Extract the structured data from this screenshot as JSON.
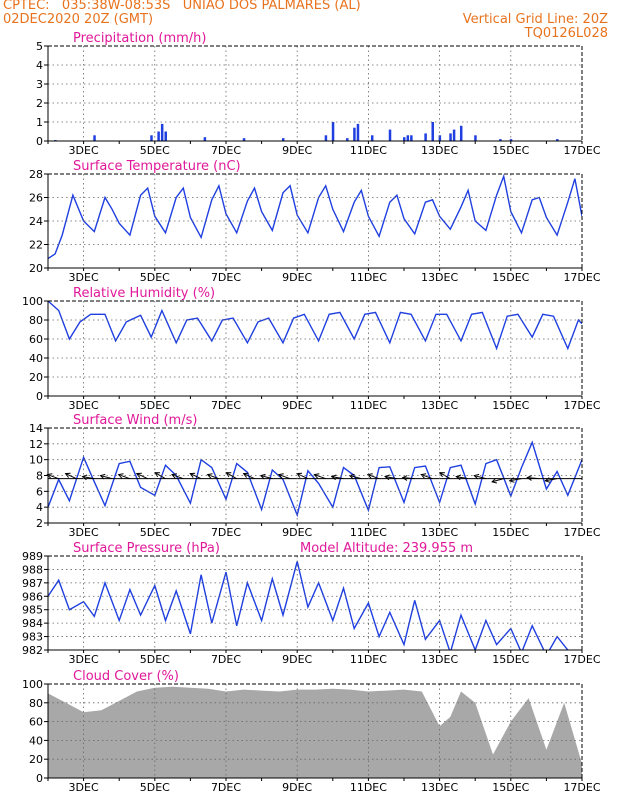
{
  "header": {
    "line1": "CPTEC:   035:38W-08:53S   UNIAO DOS PALMARES (AL)",
    "line2": "02DEC2020 20Z (GMT)",
    "grid_note": "Vertical Grid Line: 20Z",
    "model_code": "TQ0126L028"
  },
  "colors": {
    "header": "#e8731e",
    "title": "#e0189a",
    "line": "#1f3fe0",
    "cloud": "#a8a8a8",
    "arrow": "#000000"
  },
  "x_axis": {
    "ticks": [
      "3DEC",
      "5DEC",
      "7DEC",
      "9DEC",
      "11DEC",
      "13DEC",
      "15DEC",
      "17DEC"
    ]
  },
  "panels": [
    {
      "title": "Precipitation (mm/h)",
      "extra": ""
    },
    {
      "title": "Surface Temperature (nC)",
      "extra": ""
    },
    {
      "title": "Relative Humidity (%)",
      "extra": ""
    },
    {
      "title": "Surface Wind (m/s)",
      "extra": ""
    },
    {
      "title": "Surface Pressure (hPa)",
      "extra": "Model Altitude: 239.955 m"
    },
    {
      "title": "Cloud Cover (%)",
      "extra": ""
    }
  ],
  "chart_data": [
    {
      "type": "bar",
      "title": "Precipitation (mm/h)",
      "ylim": [
        0,
        5
      ],
      "yticks": [
        "0",
        "1",
        "2",
        "3",
        "4",
        "5"
      ],
      "x": [
        "2.20",
        "3.3",
        "4.9",
        "5.1",
        "5.2",
        "5.3",
        "6.4",
        "7.5",
        "8.6",
        "9.8",
        "10.0",
        "10.4",
        "10.6",
        "10.7",
        "11.1",
        "11.6",
        "12.0",
        "12.1",
        "12.2",
        "12.6",
        "12.8",
        "13.0",
        "13.3",
        "13.4",
        "13.6",
        "14.0",
        "14.7",
        "15.0",
        "16.3"
      ],
      "values": [
        0.05,
        0.3,
        0.3,
        0.5,
        0.9,
        0.5,
        0.2,
        0.15,
        0.15,
        0.3,
        1.0,
        0.15,
        0.7,
        0.9,
        0.3,
        0.6,
        0.2,
        0.3,
        0.3,
        0.4,
        1.0,
        0.3,
        0.4,
        0.6,
        0.8,
        0.3,
        0.1,
        0.1,
        0.1
      ]
    },
    {
      "type": "line",
      "title": "Surface Temperature (nC)",
      "ylim": [
        20,
        28
      ],
      "yticks": [
        "20",
        "22",
        "24",
        "26",
        "28"
      ],
      "x_days": [
        2.0,
        2.2,
        2.4,
        2.7,
        3.0,
        3.3,
        3.6,
        3.8,
        4.0,
        4.3,
        4.6,
        4.8,
        5.0,
        5.3,
        5.6,
        5.8,
        6.0,
        6.3,
        6.6,
        6.8,
        7.0,
        7.3,
        7.6,
        7.8,
        8.0,
        8.3,
        8.6,
        8.8,
        9.0,
        9.3,
        9.6,
        9.8,
        10.0,
        10.3,
        10.6,
        10.8,
        11.0,
        11.3,
        11.6,
        11.8,
        12.0,
        12.3,
        12.6,
        12.8,
        13.0,
        13.3,
        13.6,
        13.8,
        14.0,
        14.3,
        14.6,
        14.8,
        15.0,
        15.3,
        15.6,
        15.8,
        16.0,
        16.3,
        16.6,
        16.8,
        17.0
      ],
      "values": [
        20.8,
        21.2,
        22.8,
        26.2,
        24.0,
        23.1,
        26.0,
        25.0,
        23.8,
        22.8,
        26.2,
        26.8,
        24.4,
        23.0,
        26.0,
        26.8,
        24.3,
        22.6,
        25.8,
        27.0,
        24.6,
        23.0,
        25.7,
        26.8,
        24.8,
        23.2,
        26.4,
        27.0,
        24.5,
        23.0,
        26.0,
        27.0,
        25.0,
        23.1,
        25.6,
        26.6,
        24.4,
        22.7,
        25.6,
        26.2,
        24.2,
        22.9,
        25.6,
        25.8,
        24.4,
        23.3,
        25.2,
        26.6,
        24.0,
        23.2,
        26.2,
        27.8,
        24.8,
        23.0,
        25.8,
        26.0,
        24.3,
        22.8,
        25.6,
        27.6,
        24.4
      ]
    },
    {
      "type": "line",
      "title": "Relative Humidity (%)",
      "ylim": [
        0,
        100
      ],
      "yticks": [
        "0",
        "20",
        "40",
        "60",
        "80",
        "100"
      ],
      "x_days": [
        2.0,
        2.3,
        2.6,
        2.9,
        3.2,
        3.6,
        3.9,
        4.2,
        4.6,
        4.9,
        5.2,
        5.6,
        5.9,
        6.2,
        6.6,
        6.9,
        7.2,
        7.6,
        7.9,
        8.2,
        8.6,
        8.9,
        9.2,
        9.6,
        9.9,
        10.2,
        10.6,
        10.9,
        11.2,
        11.6,
        11.9,
        12.2,
        12.6,
        12.9,
        13.2,
        13.6,
        13.9,
        14.2,
        14.6,
        14.9,
        15.2,
        15.6,
        15.9,
        16.2,
        16.6,
        16.9,
        17.0
      ],
      "values": [
        100,
        90,
        60,
        78,
        86,
        86,
        58,
        78,
        85,
        62,
        90,
        56,
        80,
        82,
        58,
        80,
        82,
        56,
        78,
        82,
        56,
        82,
        86,
        58,
        86,
        88,
        60,
        86,
        88,
        56,
        88,
        86,
        58,
        86,
        86,
        58,
        86,
        88,
        50,
        84,
        86,
        62,
        86,
        84,
        50,
        80,
        76
      ]
    },
    {
      "type": "line",
      "title": "Surface Wind (m/s)",
      "ylim": [
        2,
        14
      ],
      "yticks": [
        "2",
        "4",
        "6",
        "8",
        "10",
        "12",
        "14"
      ],
      "x_days": [
        2.0,
        2.3,
        2.6,
        3.0,
        3.3,
        3.6,
        4.0,
        4.3,
        4.6,
        5.0,
        5.3,
        5.6,
        6.0,
        6.3,
        6.6,
        7.0,
        7.3,
        7.6,
        8.0,
        8.3,
        8.6,
        9.0,
        9.3,
        9.6,
        10.0,
        10.3,
        10.6,
        11.0,
        11.3,
        11.6,
        12.0,
        12.3,
        12.6,
        13.0,
        13.3,
        13.6,
        14.0,
        14.3,
        14.6,
        15.0,
        15.3,
        15.6,
        16.0,
        16.3,
        16.6,
        17.0
      ],
      "values": [
        4,
        7.5,
        4.8,
        10.3,
        7.2,
        4.2,
        9.5,
        9.8,
        6.5,
        5.5,
        9.3,
        8.0,
        4.5,
        10.0,
        9.0,
        5.0,
        9.5,
        8.4,
        3.7,
        8.7,
        7.5,
        3.0,
        8.6,
        7.0,
        4.0,
        9.0,
        8.0,
        3.6,
        9.0,
        9.1,
        4.6,
        9.0,
        9.2,
        4.6,
        9.0,
        9.3,
        4.4,
        9.5,
        10.0,
        5.4,
        9.0,
        12.2,
        6.3,
        8.5,
        5.5,
        10.0
      ],
      "arrow_line_y": 7.6
    },
    {
      "type": "line",
      "title": "Surface Pressure (hPa)",
      "ylim": [
        982,
        989
      ],
      "yticks": [
        "982",
        "983",
        "984",
        "985",
        "986",
        "987",
        "988",
        "989"
      ],
      "x_days": [
        2.0,
        2.3,
        2.6,
        3.0,
        3.3,
        3.6,
        4.0,
        4.3,
        4.6,
        5.0,
        5.3,
        5.6,
        6.0,
        6.3,
        6.6,
        7.0,
        7.3,
        7.6,
        8.0,
        8.3,
        8.6,
        9.0,
        9.3,
        9.6,
        10.0,
        10.3,
        10.6,
        11.0,
        11.3,
        11.6,
        12.0,
        12.3,
        12.6,
        13.0,
        13.3,
        13.6,
        14.0,
        14.3,
        14.6,
        15.0,
        15.3,
        15.6,
        16.0,
        16.3,
        16.6,
        17.0
      ],
      "values": [
        986,
        987.2,
        985,
        985.6,
        984.5,
        987.0,
        984.2,
        986.5,
        984.6,
        986.8,
        984.2,
        986.4,
        983.2,
        987.6,
        984.0,
        987.8,
        983.8,
        987.0,
        984.2,
        987.3,
        984.6,
        988.6,
        985.2,
        987.0,
        984.2,
        986.6,
        983.6,
        985.5,
        983.0,
        984.8,
        982.4,
        985.7,
        982.8,
        984.2,
        981.8,
        984.6,
        982.0,
        984.2,
        982.4,
        983.6,
        981.8,
        983.8,
        981.6,
        983.0,
        982.0,
        981.5
      ]
    },
    {
      "type": "area",
      "title": "Cloud Cover (%)",
      "ylim": [
        0,
        100
      ],
      "yticks": [
        "0",
        "20",
        "40",
        "60",
        "80",
        "100"
      ],
      "x_days": [
        2.0,
        2.5,
        3.0,
        3.5,
        4.0,
        4.5,
        5.0,
        5.5,
        6.0,
        6.5,
        7.0,
        7.5,
        8.0,
        8.5,
        9.0,
        9.5,
        10.0,
        10.5,
        11.0,
        11.5,
        12.0,
        12.5,
        13.0,
        13.3,
        13.6,
        14.0,
        14.5,
        15.0,
        15.5,
        16.0,
        16.5,
        17.0
      ],
      "values": [
        90,
        80,
        70,
        72,
        82,
        92,
        96,
        97,
        96,
        95,
        92,
        94,
        93,
        92,
        94,
        94,
        95,
        94,
        92,
        93,
        94,
        92,
        55,
        65,
        92,
        80,
        25,
        60,
        85,
        30,
        80,
        15
      ]
    }
  ]
}
